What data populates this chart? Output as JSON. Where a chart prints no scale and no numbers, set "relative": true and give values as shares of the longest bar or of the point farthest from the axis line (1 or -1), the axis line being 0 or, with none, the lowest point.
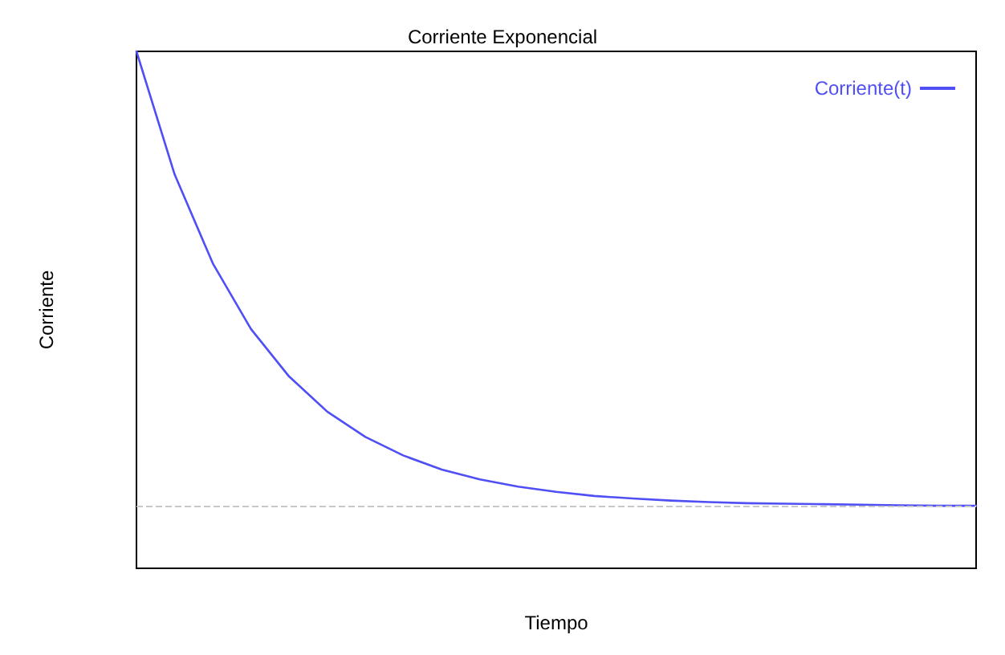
{
  "chart_data": {
    "type": "line",
    "title": "Corriente Exponencial",
    "xlabel": "Tiempo",
    "ylabel": "Corriente",
    "relative": true,
    "categories": [
      null,
      null,
      null,
      null,
      null,
      null,
      null,
      null,
      null,
      null,
      null,
      null,
      null,
      null,
      null,
      null,
      null,
      null,
      null,
      null,
      null,
      null,
      null
    ],
    "series": [
      {
        "name": "Corriente(t)",
        "color": "#4f4ff5",
        "values": [
          1.0,
          0.762,
          0.59,
          0.463,
          0.371,
          0.303,
          0.254,
          0.218,
          0.191,
          0.172,
          0.158,
          0.148,
          0.14,
          0.135,
          0.131,
          0.128,
          0.126,
          0.125,
          0.124,
          0.123,
          0.122,
          0.121,
          0.121
        ]
      }
    ],
    "ref_lines": [
      {
        "axis": "y",
        "value": 0.12,
        "label": null,
        "color": "#c8c8c8",
        "line_style": "dashed"
      }
    ],
    "legend": "top right",
    "grid": false,
    "marker": "none",
    "line_style": "solid"
  }
}
